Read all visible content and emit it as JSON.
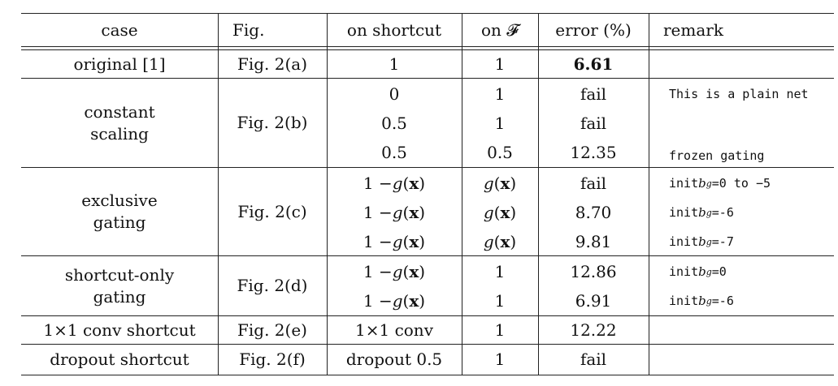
{
  "table": {
    "headers": {
      "case": "case",
      "fig": "Fig.",
      "shortcut": "on shortcut",
      "onF": "on 𝓕",
      "error": "error (%)",
      "remark": "remark"
    },
    "rows": [
      {
        "case": "original [1]",
        "fig": "Fig. 2(a)",
        "shortcut": "1",
        "onF": "1",
        "error": "6.61",
        "remark": ""
      },
      {
        "case": "constant scaling",
        "fig": "Fig. 2(b)",
        "shortcut": "0",
        "onF": "1",
        "error": "fail",
        "remark": "This is a plain net"
      },
      {
        "case": "",
        "fig": "",
        "shortcut": "0.5",
        "onF": "1",
        "error": "fail",
        "remark": ""
      },
      {
        "case": "",
        "fig": "",
        "shortcut": "0.5",
        "onF": "0.5",
        "error": "12.35",
        "remark": "frozen gating"
      },
      {
        "case": "exclusive gating",
        "fig": "Fig. 2(c)",
        "shortcut": "1 − g(x)",
        "onF": "g(x)",
        "error": "fail",
        "remark": "init bg=0 to −5"
      },
      {
        "case": "",
        "fig": "",
        "shortcut": "1 − g(x)",
        "onF": "g(x)",
        "error": "8.70",
        "remark": "init bg=-6"
      },
      {
        "case": "",
        "fig": "",
        "shortcut": "1 − g(x)",
        "onF": "g(x)",
        "error": "9.81",
        "remark": "init bg=-7"
      },
      {
        "case": "shortcut-only gating",
        "fig": "Fig. 2(d)",
        "shortcut": "1 − g(x)",
        "onF": "1",
        "error": "12.86",
        "remark": "init bg=0"
      },
      {
        "case": "",
        "fig": "",
        "shortcut": "1 − g(x)",
        "onF": "1",
        "error": "6.91",
        "remark": "init bg=-6"
      },
      {
        "case": "1×1 conv shortcut",
        "fig": "Fig. 2(e)",
        "shortcut": "1×1 conv",
        "onF": "1",
        "error": "12.22",
        "remark": ""
      },
      {
        "case": "dropout shortcut",
        "fig": "Fig. 2(f)",
        "shortcut": "dropout 0.5",
        "onF": "1",
        "error": "fail",
        "remark": ""
      }
    ],
    "group_labels": {
      "constant": [
        "constant",
        "scaling"
      ],
      "exclusive": [
        "exclusive",
        "gating"
      ],
      "shortcut_only": [
        "shortcut-only",
        "gating"
      ]
    },
    "math_parts": {
      "one_minus": "1 − ",
      "g": "g",
      "paren_open": "(",
      "x": "x",
      "paren_close": ")",
      "init": "init ",
      "b": "b",
      "sub": "g"
    }
  }
}
